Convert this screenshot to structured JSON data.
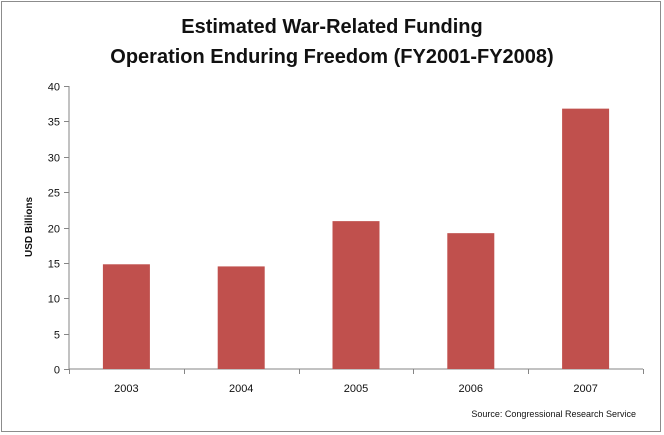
{
  "chart_data": {
    "type": "bar",
    "title_line1": "Estimated War-Related Funding",
    "title_line2": "Operation Enduring Freedom (FY2001-FY2008)",
    "xlabel": "",
    "ylabel": "USD Billions",
    "categories": [
      "2003",
      "2004",
      "2005",
      "2006",
      "2007"
    ],
    "values": [
      14.8,
      14.5,
      20.9,
      19.2,
      36.8
    ],
    "ylim": [
      0,
      40
    ],
    "yticks": [
      0,
      5,
      10,
      15,
      20,
      25,
      30,
      35,
      40
    ],
    "grid": false,
    "legend": "none",
    "bar_color": "#c0504d",
    "source": "Source: Congressional Research Service"
  }
}
